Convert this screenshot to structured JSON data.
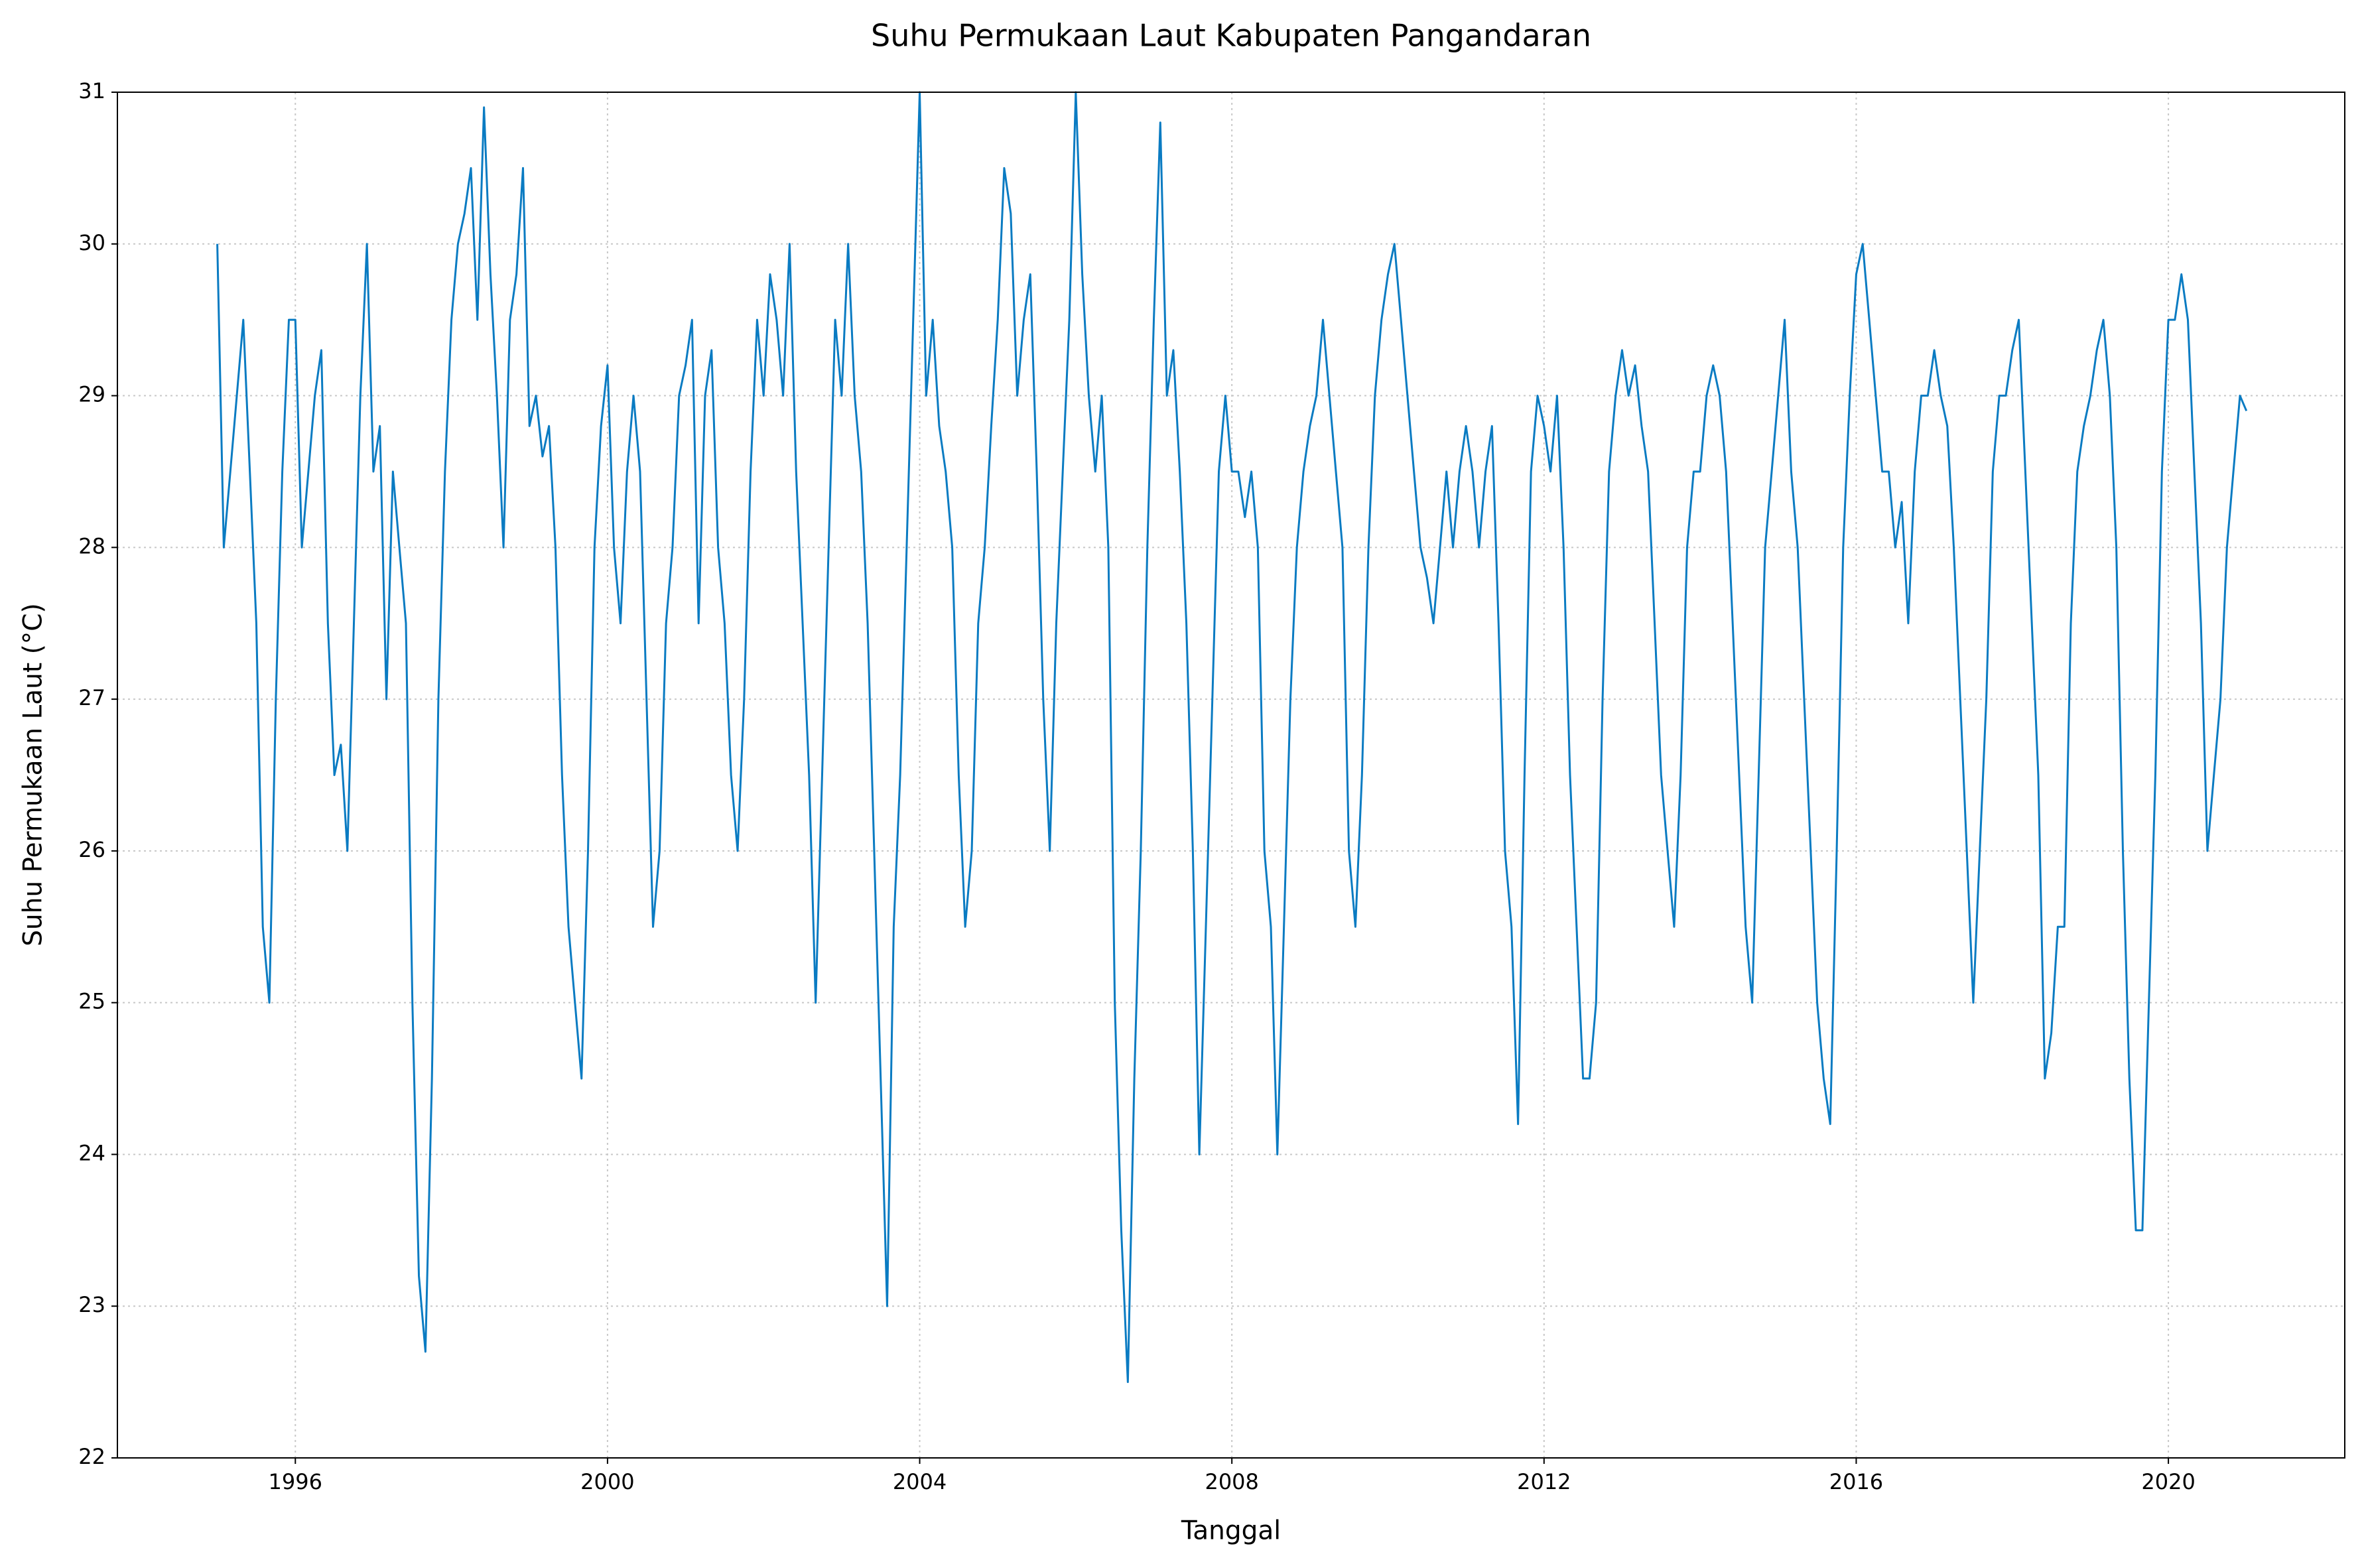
{
  "chart_data": {
    "type": "line",
    "title": "Suhu Permukaan Laut Kabupaten Pangandaran",
    "xlabel": "Tanggal",
    "ylabel": "Suhu Permukaan Laut (°C)",
    "color": "#0a7bc2",
    "grid": true,
    "xlim": [
      1993.72,
      2022.26
    ],
    "xticks": [
      1996,
      2000,
      2004,
      2008,
      2012,
      2016,
      2020
    ],
    "ylim": [
      22,
      31
    ],
    "yticks": [
      22,
      23,
      24,
      25,
      26,
      27,
      28,
      29,
      30,
      31
    ],
    "x": [
      1995.0,
      1995.083,
      1995.167,
      1995.25,
      1995.333,
      1995.417,
      1995.5,
      1995.583,
      1995.667,
      1995.75,
      1995.833,
      1995.917,
      1996.0,
      1996.083,
      1996.167,
      1996.25,
      1996.333,
      1996.417,
      1996.5,
      1996.583,
      1996.667,
      1996.75,
      1996.833,
      1996.917,
      1997.0,
      1997.083,
      1997.167,
      1997.25,
      1997.333,
      1997.417,
      1997.5,
      1997.583,
      1997.667,
      1997.75,
      1997.833,
      1997.917,
      1998.0,
      1998.083,
      1998.167,
      1998.25,
      1998.333,
      1998.417,
      1998.5,
      1998.583,
      1998.667,
      1998.75,
      1998.833,
      1998.917,
      1999.0,
      1999.083,
      1999.167,
      1999.25,
      1999.333,
      1999.417,
      1999.5,
      1999.583,
      1999.667,
      1999.75,
      1999.833,
      1999.917,
      2000.0,
      2000.083,
      2000.167,
      2000.25,
      2000.333,
      2000.417,
      2000.5,
      2000.583,
      2000.667,
      2000.75,
      2000.833,
      2000.917,
      2001.0,
      2001.083,
      2001.167,
      2001.25,
      2001.333,
      2001.417,
      2001.5,
      2001.583,
      2001.667,
      2001.75,
      2001.833,
      2001.917,
      2002.0,
      2002.083,
      2002.167,
      2002.25,
      2002.333,
      2002.417,
      2002.5,
      2002.583,
      2002.667,
      2002.75,
      2002.833,
      2002.917,
      2003.0,
      2003.083,
      2003.167,
      2003.25,
      2003.333,
      2003.417,
      2003.5,
      2003.583,
      2003.667,
      2003.75,
      2003.833,
      2003.917,
      2004.0,
      2004.083,
      2004.167,
      2004.25,
      2004.333,
      2004.417,
      2004.5,
      2004.583,
      2004.667,
      2004.75,
      2004.833,
      2004.917,
      2005.0,
      2005.083,
      2005.167,
      2005.25,
      2005.333,
      2005.417,
      2005.5,
      2005.583,
      2005.667,
      2005.75,
      2005.833,
      2005.917,
      2006.0,
      2006.083,
      2006.167,
      2006.25,
      2006.333,
      2006.417,
      2006.5,
      2006.583,
      2006.667,
      2006.75,
      2006.833,
      2006.917,
      2007.0,
      2007.083,
      2007.167,
      2007.25,
      2007.333,
      2007.417,
      2007.5,
      2007.583,
      2007.667,
      2007.75,
      2007.833,
      2007.917,
      2008.0,
      2008.083,
      2008.167,
      2008.25,
      2008.333,
      2008.417,
      2008.5,
      2008.583,
      2008.667,
      2008.75,
      2008.833,
      2008.917,
      2009.0,
      2009.083,
      2009.167,
      2009.25,
      2009.333,
      2009.417,
      2009.5,
      2009.583,
      2009.667,
      2009.75,
      2009.833,
      2009.917,
      2010.0,
      2010.083,
      2010.167,
      2010.25,
      2010.333,
      2010.417,
      2010.5,
      2010.583,
      2010.667,
      2010.75,
      2010.833,
      2010.917,
      2011.0,
      2011.083,
      2011.167,
      2011.25,
      2011.333,
      2011.417,
      2011.5,
      2011.583,
      2011.667,
      2011.75,
      2011.833,
      2011.917,
      2012.0,
      2012.083,
      2012.167,
      2012.25,
      2012.333,
      2012.417,
      2012.5,
      2012.583,
      2012.667,
      2012.75,
      2012.833,
      2012.917,
      2013.0,
      2013.083,
      2013.167,
      2013.25,
      2013.333,
      2013.417,
      2013.5,
      2013.583,
      2013.667,
      2013.75,
      2013.833,
      2013.917,
      2014.0,
      2014.083,
      2014.167,
      2014.25,
      2014.333,
      2014.417,
      2014.5,
      2014.583,
      2014.667,
      2014.75,
      2014.833,
      2014.917,
      2015.0,
      2015.083,
      2015.167,
      2015.25,
      2015.333,
      2015.417,
      2015.5,
      2015.583,
      2015.667,
      2015.75,
      2015.833,
      2015.917,
      2016.0,
      2016.083,
      2016.167,
      2016.25,
      2016.333,
      2016.417,
      2016.5,
      2016.583,
      2016.667,
      2016.75,
      2016.833,
      2016.917,
      2017.0,
      2017.083,
      2017.167,
      2017.25,
      2017.333,
      2017.417,
      2017.5,
      2017.583,
      2017.667,
      2017.75,
      2017.833,
      2017.917,
      2018.0,
      2018.083,
      2018.167,
      2018.25,
      2018.333,
      2018.417,
      2018.5,
      2018.583,
      2018.667,
      2018.75,
      2018.833,
      2018.917,
      2019.0,
      2019.083,
      2019.167,
      2019.25,
      2019.333,
      2019.417,
      2019.5,
      2019.583,
      2019.667,
      2019.75,
      2019.833,
      2019.917,
      2020.0,
      2020.083,
      2020.167,
      2020.25,
      2020.333,
      2020.417,
      2020.5,
      2020.583,
      2020.667,
      2020.75,
      2020.833,
      2020.917,
      2021.0
    ],
    "values": [
      30.0,
      28.0,
      28.5,
      29.0,
      29.5,
      28.5,
      27.5,
      25.5,
      25.0,
      27.0,
      28.5,
      29.5,
      29.5,
      28.0,
      28.5,
      29.0,
      29.3,
      27.5,
      26.5,
      26.7,
      26.0,
      27.5,
      29.0,
      30.0,
      28.5,
      28.8,
      27.0,
      28.5,
      28.0,
      27.5,
      25.0,
      23.2,
      22.7,
      24.5,
      27.0,
      28.5,
      29.5,
      30.0,
      30.2,
      30.5,
      29.5,
      30.9,
      29.8,
      29.0,
      28.0,
      29.5,
      29.8,
      30.5,
      28.8,
      29.0,
      28.6,
      28.8,
      28.0,
      26.5,
      25.5,
      25.0,
      24.5,
      26.0,
      28.0,
      28.8,
      29.2,
      28.0,
      27.5,
      28.5,
      29.0,
      28.5,
      27.0,
      25.5,
      26.0,
      27.5,
      28.0,
      29.0,
      29.2,
      29.5,
      27.5,
      29.0,
      29.3,
      28.0,
      27.5,
      26.5,
      26.0,
      27.0,
      28.5,
      29.5,
      29.0,
      29.8,
      29.5,
      29.0,
      30.0,
      28.5,
      27.5,
      26.5,
      25.0,
      26.5,
      28.0,
      29.5,
      29.0,
      30.0,
      29.0,
      28.5,
      27.5,
      26.0,
      24.5,
      23.0,
      25.5,
      26.5,
      28.0,
      29.5,
      31.0,
      29.0,
      29.5,
      28.8,
      28.5,
      28.0,
      26.5,
      25.5,
      26.0,
      27.5,
      28.0,
      28.8,
      29.5,
      30.5,
      30.2,
      29.0,
      29.5,
      29.8,
      28.5,
      27.0,
      26.0,
      27.5,
      28.5,
      29.5,
      31.0,
      29.8,
      29.0,
      28.5,
      29.0,
      28.0,
      25.0,
      23.5,
      22.5,
      24.5,
      26.0,
      28.0,
      29.5,
      30.8,
      29.0,
      29.3,
      28.5,
      27.5,
      26.0,
      24.0,
      25.5,
      27.0,
      28.5,
      29.0,
      28.5,
      28.5,
      28.2,
      28.5,
      28.0,
      26.0,
      25.5,
      24.0,
      25.5,
      27.0,
      28.0,
      28.5,
      28.8,
      29.0,
      29.5,
      29.0,
      28.5,
      28.0,
      26.0,
      25.5,
      26.5,
      28.0,
      29.0,
      29.5,
      29.8,
      30.0,
      29.5,
      29.0,
      28.5,
      28.0,
      27.8,
      27.5,
      28.0,
      28.5,
      28.0,
      28.5,
      28.8,
      28.5,
      28.0,
      28.5,
      28.8,
      27.5,
      26.0,
      25.5,
      24.2,
      26.5,
      28.5,
      29.0,
      28.8,
      28.5,
      29.0,
      28.0,
      26.5,
      25.5,
      24.5,
      24.5,
      25.0,
      27.0,
      28.5,
      29.0,
      29.3,
      29.0,
      29.2,
      28.8,
      28.5,
      27.5,
      26.5,
      26.0,
      25.5,
      26.5,
      28.0,
      28.5,
      28.5,
      29.0,
      29.2,
      29.0,
      28.5,
      27.5,
      26.5,
      25.5,
      25.0,
      26.5,
      28.0,
      28.5,
      29.0,
      29.5,
      28.5,
      28.0,
      27.0,
      26.0,
      25.0,
      24.5,
      24.2,
      26.0,
      28.0,
      29.0,
      29.8,
      30.0,
      29.5,
      29.0,
      28.5,
      28.5,
      28.0,
      28.3,
      27.5,
      28.5,
      29.0,
      29.0,
      29.3,
      29.0,
      28.8,
      28.0,
      27.0,
      26.0,
      25.0,
      26.0,
      27.0,
      28.5,
      29.0,
      29.0,
      29.3,
      29.5,
      28.5,
      27.5,
      26.5,
      24.5,
      24.8,
      25.5,
      25.5,
      27.5,
      28.5,
      28.8,
      29.0,
      29.3,
      29.5,
      29.0,
      28.0,
      26.0,
      24.5,
      23.5,
      23.5,
      25.0,
      26.5,
      28.5,
      29.5,
      29.5,
      29.8,
      29.5,
      28.5,
      27.5,
      26.0,
      26.5,
      27.0,
      28.0,
      28.5,
      29.0,
      28.9
    ]
  }
}
